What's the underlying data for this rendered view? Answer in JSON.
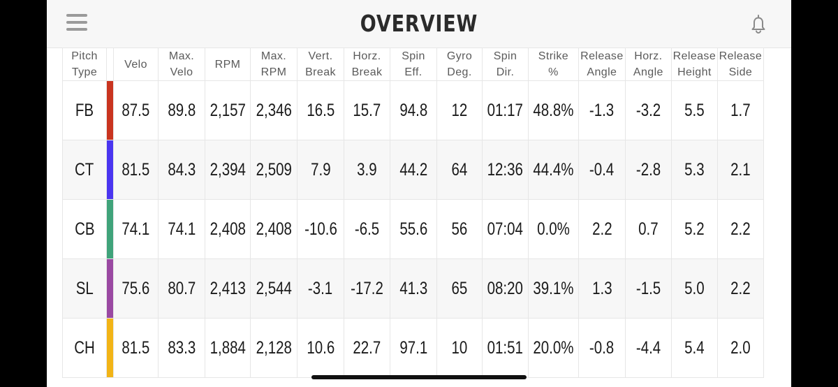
{
  "header": {
    "title": "OVERVIEW",
    "menu_icon": "hamburger-menu-icon",
    "notification_icon": "bell-icon"
  },
  "table": {
    "headers": [
      [
        "Pitch",
        "Type"
      ],
      [
        "Velo",
        ""
      ],
      [
        "Max.",
        "Velo"
      ],
      [
        "RPM",
        ""
      ],
      [
        "Max.",
        "RPM"
      ],
      [
        "Vert.",
        "Break"
      ],
      [
        "Horz.",
        "Break"
      ],
      [
        "Spin",
        "Eff."
      ],
      [
        "Gyro",
        "Deg."
      ],
      [
        "Spin",
        "Dir."
      ],
      [
        "Strike",
        "%"
      ],
      [
        "Release",
        "Angle"
      ],
      [
        "Horz.",
        "Angle"
      ],
      [
        "Release",
        "Height"
      ],
      [
        "Release",
        "Side"
      ]
    ],
    "rows": [
      {
        "type": "FB",
        "color": "#c9341f",
        "values": [
          "87.5",
          "89.8",
          "2,157",
          "2,346",
          "16.5",
          "15.7",
          "94.8",
          "12",
          "01:17",
          "48.8%",
          "-1.3",
          "-3.2",
          "5.5",
          "1.7"
        ]
      },
      {
        "type": "CT",
        "color": "#4a35f0",
        "values": [
          "81.5",
          "84.3",
          "2,394",
          "2,509",
          "7.9",
          "3.9",
          "44.2",
          "64",
          "12:36",
          "44.4%",
          "-0.4",
          "-2.8",
          "5.3",
          "2.1"
        ]
      },
      {
        "type": "CB",
        "color": "#3fa37a",
        "values": [
          "74.1",
          "74.1",
          "2,408",
          "2,408",
          "-10.6",
          "-6.5",
          "55.6",
          "56",
          "07:04",
          "0.0%",
          "2.2",
          "0.7",
          "5.2",
          "2.2"
        ]
      },
      {
        "type": "SL",
        "color": "#9a49a2",
        "values": [
          "75.6",
          "80.7",
          "2,413",
          "2,544",
          "-3.1",
          "-17.2",
          "41.3",
          "65",
          "08:20",
          "39.1%",
          "1.3",
          "-1.5",
          "5.0",
          "2.2"
        ]
      },
      {
        "type": "CH",
        "color": "#f2b416",
        "values": [
          "81.5",
          "83.3",
          "1,884",
          "2,128",
          "10.6",
          "22.7",
          "97.1",
          "10",
          "01:51",
          "20.0%",
          "-0.8",
          "-4.4",
          "5.4",
          "2.0"
        ]
      }
    ]
  }
}
